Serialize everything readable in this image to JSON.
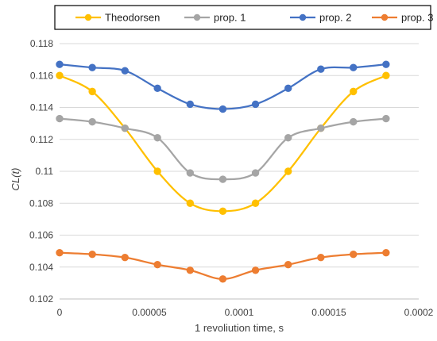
{
  "chart_data": {
    "type": "line",
    "title": "",
    "xlabel": "1 revoliution time, s",
    "ylabel": "CL(t)",
    "xlim": [
      0,
      0.0002
    ],
    "ylim": [
      0.102,
      0.118
    ],
    "x_ticks": [
      "0",
      "0.00005",
      "0.0001",
      "0.00015",
      "0.0002"
    ],
    "x_tick_values": [
      0,
      5e-05,
      0.0001,
      0.00015,
      0.0002
    ],
    "y_ticks": [
      "0.102",
      "0.104",
      "0.106",
      "0.108",
      "0.11",
      "0.112",
      "0.114",
      "0.116",
      "0.118"
    ],
    "y_tick_values": [
      0.102,
      0.104,
      0.106,
      0.108,
      0.11,
      0.112,
      0.114,
      0.116,
      0.118
    ],
    "grid": true,
    "legend_position": "top",
    "x": [
      0,
      1.82e-05,
      3.64e-05,
      5.45e-05,
      7.27e-05,
      9.09e-05,
      0.0001091,
      0.0001273,
      0.0001455,
      0.0001636,
      0.0001818
    ],
    "series": [
      {
        "name": "Theodorsen",
        "color": "#FFC000",
        "values": [
          0.116,
          0.115,
          0.1127,
          0.11,
          0.108,
          0.1075,
          0.108,
          0.11,
          0.1127,
          0.115,
          0.116
        ]
      },
      {
        "name": "prop. 1",
        "color": "#A5A5A5",
        "values": [
          0.1133,
          0.1131,
          0.1127,
          0.1121,
          0.1099,
          0.1095,
          0.1099,
          0.1121,
          0.1127,
          0.1131,
          0.1133
        ]
      },
      {
        "name": "prop. 2",
        "color": "#4472C4",
        "values": [
          0.1167,
          0.1165,
          0.1163,
          0.1152,
          0.1142,
          0.1139,
          0.1142,
          0.1152,
          0.1164,
          0.1165,
          0.1167
        ]
      },
      {
        "name": "prop. 3",
        "color": "#ED7D31",
        "values": [
          0.1049,
          0.1048,
          0.1046,
          0.10415,
          0.1038,
          0.10325,
          0.1038,
          0.10415,
          0.1046,
          0.1048,
          0.1049
        ]
      }
    ]
  }
}
